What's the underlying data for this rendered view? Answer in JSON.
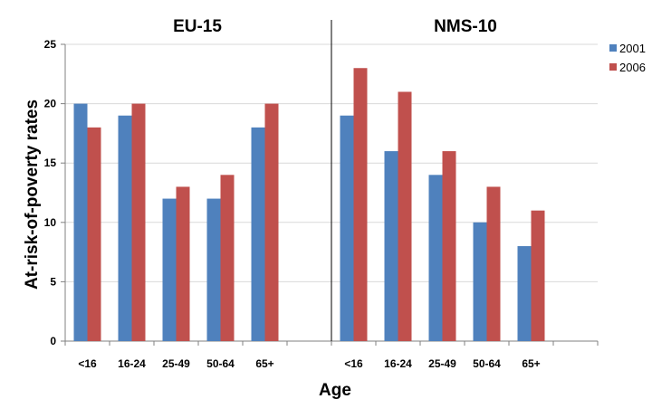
{
  "chart_data": {
    "type": "bar",
    "panels": [
      {
        "title": "EU-15",
        "categories": [
          "<16",
          "16-24",
          "25-49",
          "50-64",
          "65+",
          ""
        ],
        "series": [
          {
            "name": "2001",
            "color": "#4F81BD",
            "values": [
              20,
              19,
              12,
              12,
              18,
              null
            ]
          },
          {
            "name": "2006",
            "color": "#C0504D",
            "values": [
              18,
              20,
              13,
              14,
              20,
              null
            ]
          }
        ]
      },
      {
        "title": "NMS-10",
        "categories": [
          "<16",
          "16-24",
          "25-49",
          "50-64",
          "65+",
          ""
        ],
        "series": [
          {
            "name": "2001",
            "color": "#4F81BD",
            "values": [
              19,
              16,
              14,
              10,
              8,
              null
            ]
          },
          {
            "name": "2006",
            "color": "#C0504D",
            "values": [
              23,
              21,
              16,
              13,
              11,
              null
            ]
          }
        ]
      }
    ],
    "xlabel": "Age",
    "ylabel": "At-risk-of-poverty rates",
    "ylim": [
      0,
      25
    ],
    "yticks": [
      0,
      5,
      10,
      15,
      20,
      25
    ],
    "grid": true,
    "legend": {
      "placement": "top-right",
      "entries": [
        "2001",
        "2006"
      ]
    }
  }
}
